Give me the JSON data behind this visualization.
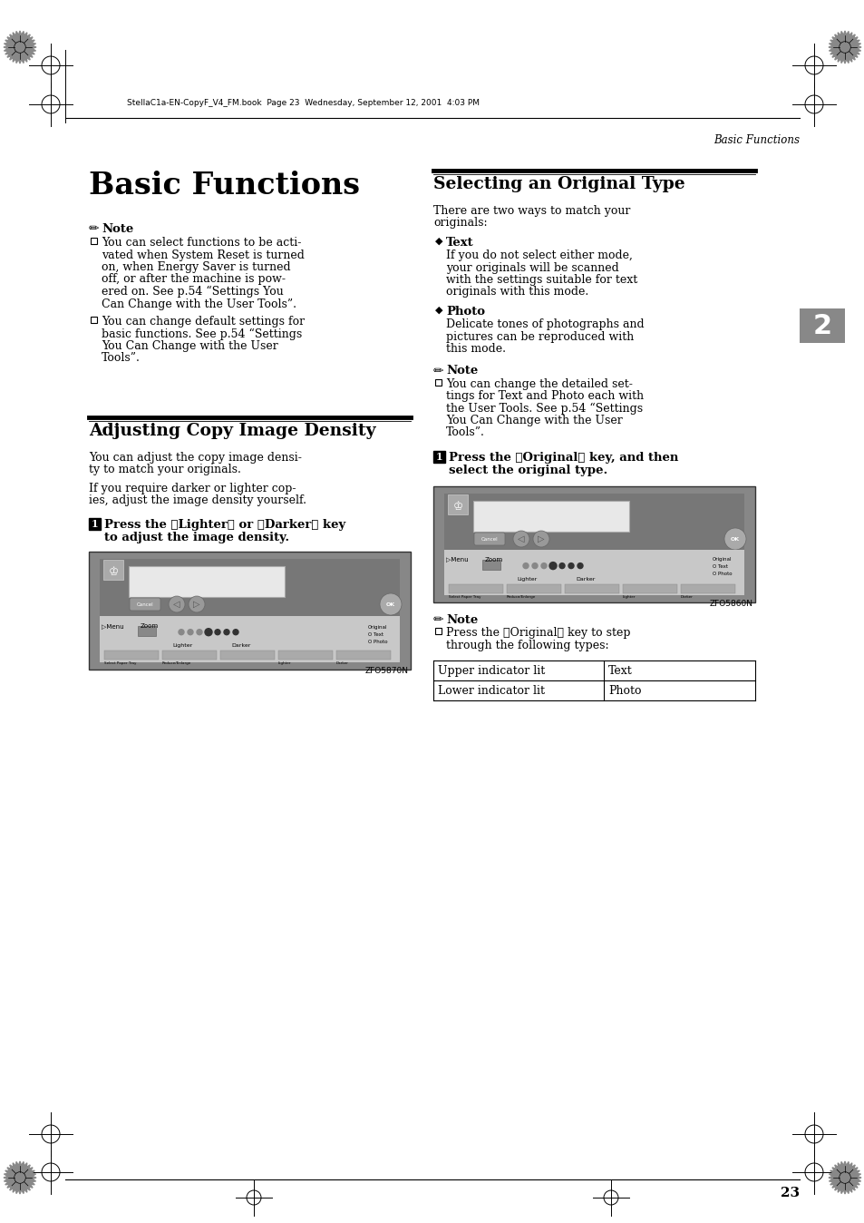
{
  "page_bg": "#ffffff",
  "header_text": "StellaC1a-EN-CopyF_V4_FM.book  Page 23  Wednesday, September 12, 2001  4:03 PM",
  "header_right": "Basic Functions",
  "footer_number": "23",
  "title": "Basic Functions",
  "note_label": "Note",
  "note_items_left": [
    "You can select functions to be acti-\nvated when System Reset is turned\non, when Energy Saver is turned\noff, or after the machine is pow-\nered on. See p.54 “Settings You\nCan Change with the User Tools”.",
    "You can change default settings for\nbasic functions. See p.54 “Settings\nYou Can Change with the User\nTools”."
  ],
  "section1_title": "Adjusting Copy Image Density",
  "section1_para1": "You can adjust the copy image densi-\nty to match your originals.",
  "section1_para2": "If you require darker or lighter cop-\nies, adjust the image density yourself.",
  "section1_step_line1": "Press the 【Lighter】 or 【Darker】 key",
  "section1_step_line2": "to adjust the image density.",
  "section2_title": "Selecting an Original Type",
  "section2_intro_line1": "There are two ways to match your",
  "section2_intro_line2": "originals:",
  "section2_text_head": "Text",
  "section2_text_body": "If you do not select either mode,\nyour originals will be scanned\nwith the settings suitable for text\noriginals with this mode.",
  "section2_photo_head": "Photo",
  "section2_photo_body": "Delicate tones of photographs and\npictures can be reproduced with\nthis mode.",
  "section2_note_item": "You can change the detailed set-\ntings for Text and Photo each with\nthe User Tools. See p.54 “Settings\nYou Can Change with the User\nTools”.",
  "section2_step_line1": "Press the 【Original】 key, and then",
  "section2_step_line2": "select the original type.",
  "note3_item_line1": "Press the 【Original】 key to step",
  "note3_item_line2": "through the following types:",
  "table_r0c0": "Upper indicator lit",
  "table_r0c1": "Text",
  "table_r1c0": "Lower indicator lit",
  "table_r1c1": "Photo",
  "chapter_num": "2",
  "image1_caption": "ZFO5870N",
  "image2_caption": "ZFO5860N"
}
